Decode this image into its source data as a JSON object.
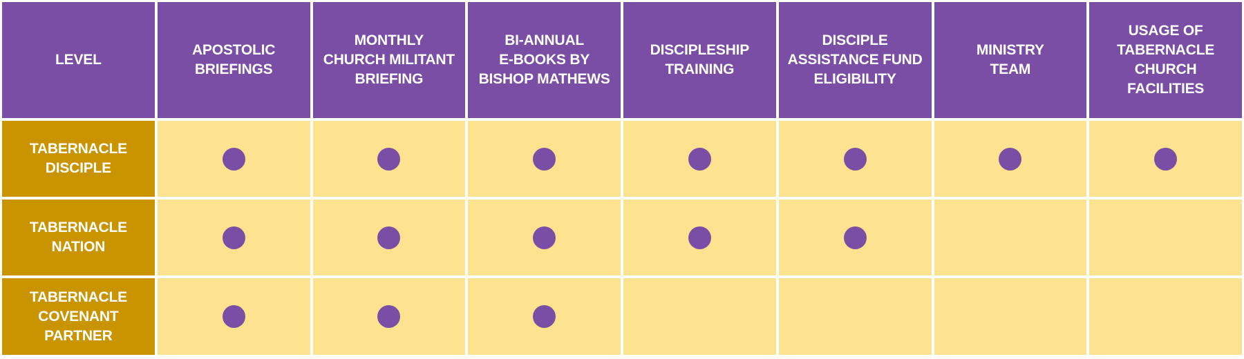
{
  "colors": {
    "header_bg": "#7a4ea5",
    "level_bg": "#c99400",
    "cell_bg": "#fde28f",
    "dot": "#7a4ea5",
    "text": "#ffffff"
  },
  "table": {
    "corner_label": "LEVEL",
    "columns": [
      "APOSTOLIC\nBRIEFINGS",
      "MONTHLY\nCHURCH MILITANT\nBRIEFING",
      "BI-ANNUAL\nE-BOOKS BY\nBISHOP MATHEWS",
      "DISCIPLESHIP\nTRAINING",
      "DISCIPLE\nASSISTANCE FUND\nELIGIBILITY",
      "MINISTRY\nTEAM",
      "USAGE OF\nTABERNACLE\nCHURCH\nFACILITIES"
    ],
    "rows": [
      {
        "level": "TABERNACLE\nDISCIPLE",
        "included": [
          true,
          true,
          true,
          true,
          true,
          true,
          true
        ]
      },
      {
        "level": "TABERNACLE\nNATION",
        "included": [
          true,
          true,
          true,
          true,
          true,
          false,
          false
        ]
      },
      {
        "level": "TABERNACLE\nCOVENANT\nPARTNER",
        "included": [
          true,
          true,
          true,
          false,
          false,
          false,
          false
        ]
      }
    ]
  }
}
